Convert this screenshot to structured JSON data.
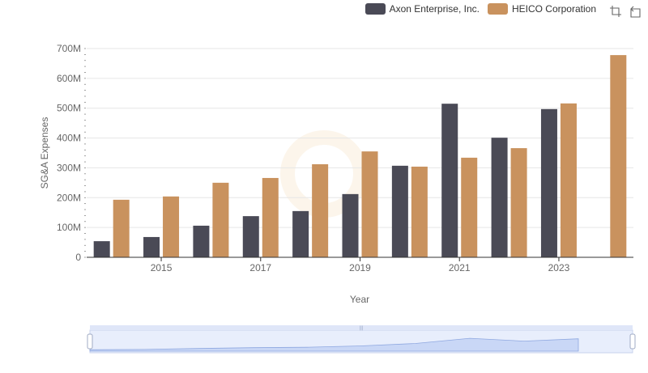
{
  "legend": {
    "items": [
      {
        "label": "Axon Enterprise, Inc.",
        "color": "#4a4a56"
      },
      {
        "label": "HEICO Corporation",
        "color": "#c9925e"
      }
    ]
  },
  "toolbox": {
    "icons": [
      "zoom-select-icon",
      "zoom-reset-icon"
    ]
  },
  "chart_data": {
    "type": "bar",
    "title": "",
    "xlabel": "Year",
    "ylabel": "SG&A Expenses",
    "ylim": [
      0,
      700
    ],
    "y_unit": "M",
    "y_ticks": [
      "0",
      "100M",
      "200M",
      "300M",
      "400M",
      "500M",
      "600M",
      "700M"
    ],
    "x_tick_labels": [
      "2015",
      "2017",
      "2019",
      "2021",
      "2023"
    ],
    "categories": [
      "2014",
      "2015",
      "2016",
      "2017",
      "2018",
      "2019",
      "2020",
      "2021",
      "2022",
      "2023",
      "2024"
    ],
    "series": [
      {
        "name": "Axon Enterprise, Inc.",
        "color": "#4a4a56",
        "values": [
          54,
          68,
          106,
          138,
          155,
          212,
          307,
          515,
          401,
          497,
          null
        ]
      },
      {
        "name": "HEICO Corporation",
        "color": "#c9925e",
        "values": [
          193,
          204,
          250,
          266,
          312,
          355,
          304,
          334,
          366,
          516,
          678
        ]
      }
    ],
    "grid": true,
    "legend_position": "top-right",
    "datazoom": {
      "start_percent": 0,
      "end_percent": 100
    }
  }
}
